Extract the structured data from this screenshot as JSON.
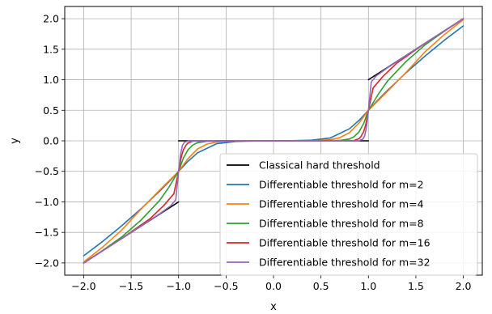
{
  "chart_data": {
    "type": "line",
    "xlabel": "x",
    "ylabel": "y",
    "xlim": [
      -2.2,
      2.2
    ],
    "ylim": [
      -2.2,
      2.2
    ],
    "xticks": [
      -2.0,
      -1.5,
      -1.0,
      -0.5,
      0.0,
      0.5,
      1.0,
      1.5,
      2.0
    ],
    "yticks": [
      -2.0,
      -1.5,
      -1.0,
      -0.5,
      0.0,
      0.5,
      1.0,
      1.5,
      2.0
    ],
    "xtick_labels": [
      "−2.0",
      "−1.5",
      "−1.0",
      "−0.5",
      "0.0",
      "0.5",
      "1.0",
      "1.5",
      "2.0"
    ],
    "ytick_labels": [
      "−2.0",
      "−1.5",
      "−1.0",
      "−0.5",
      "0.0",
      "0.5",
      "1.0",
      "1.5",
      "2.0"
    ],
    "grid": true,
    "legend_position": "lower-right",
    "series": [
      {
        "name": "Classical hard threshold",
        "color": "#000000",
        "segments": [
          {
            "x": [
              -2.0,
              -1.0
            ],
            "y": [
              -2.0,
              -1.0
            ]
          },
          {
            "x": [
              -1.0,
              1.0
            ],
            "y": [
              0.0,
              0.0
            ]
          },
          {
            "x": [
              1.0,
              2.0
            ],
            "y": [
              1.0,
              2.0
            ]
          }
        ]
      },
      {
        "name": "Differentiable threshold for m=2",
        "color": "#1f77b4",
        "m": 2,
        "x": [
          -2.0,
          -1.8,
          -1.6,
          -1.4,
          -1.2,
          -1.1,
          -1.0,
          -0.9,
          -0.8,
          -0.6,
          -0.4,
          -0.2,
          0.0,
          0.2,
          0.4,
          0.6,
          0.8,
          0.9,
          1.0,
          1.1,
          1.2,
          1.4,
          1.6,
          1.8,
          2.0
        ],
        "y": [
          -1.882,
          -1.647,
          -1.392,
          -1.118,
          -0.824,
          -0.668,
          -0.5,
          -0.332,
          -0.196,
          -0.048,
          -0.011,
          -0.002,
          0.0,
          0.002,
          0.011,
          0.048,
          0.196,
          0.332,
          0.5,
          0.668,
          0.824,
          1.118,
          1.392,
          1.647,
          1.882
        ]
      },
      {
        "name": "Differentiable threshold for m=4",
        "color": "#ff7f0e",
        "m": 4,
        "x": [
          -2.0,
          -1.8,
          -1.6,
          -1.4,
          -1.2,
          -1.1,
          -1.0,
          -0.9,
          -0.8,
          -0.7,
          -0.6,
          -0.4,
          0.0,
          0.4,
          0.6,
          0.7,
          0.8,
          0.9,
          1.0,
          1.1,
          1.2,
          1.4,
          1.6,
          1.8,
          2.0
        ],
        "y": [
          -1.984,
          -1.74,
          -1.462,
          -1.126,
          -0.807,
          -0.654,
          -0.5,
          -0.289,
          -0.132,
          -0.053,
          -0.02,
          -0.001,
          0.0,
          0.001,
          0.02,
          0.053,
          0.132,
          0.289,
          0.5,
          0.654,
          0.807,
          1.126,
          1.462,
          1.74,
          1.984
        ]
      },
      {
        "name": "Differentiable threshold for m=8",
        "color": "#2ca02c",
        "m": 8,
        "x": [
          -2.0,
          -1.8,
          -1.6,
          -1.4,
          -1.2,
          -1.1,
          -1.05,
          -1.0,
          -0.95,
          -0.9,
          -0.85,
          -0.8,
          -0.7,
          0.0,
          0.7,
          0.8,
          0.85,
          0.9,
          0.95,
          1.0,
          1.05,
          1.1,
          1.2,
          1.4,
          1.6,
          1.8,
          2.0
        ],
        "y": [
          -2.0,
          -1.794,
          -1.575,
          -1.304,
          -0.977,
          -0.754,
          -0.623,
          -0.5,
          -0.283,
          -0.143,
          -0.069,
          -0.03,
          -0.006,
          0.0,
          0.006,
          0.03,
          0.069,
          0.143,
          0.283,
          0.5,
          0.623,
          0.754,
          0.977,
          1.304,
          1.575,
          1.794,
          2.0
        ]
      },
      {
        "name": "Differentiable threshold for m=16",
        "color": "#d62728",
        "m": 16,
        "x": [
          -2.0,
          -1.6,
          -1.3,
          -1.15,
          -1.05,
          -1.0,
          -0.97,
          -0.95,
          -0.92,
          -0.9,
          -0.85,
          0.0,
          0.85,
          0.9,
          0.92,
          0.95,
          0.97,
          1.0,
          1.05,
          1.15,
          1.3,
          1.6,
          2.0
        ],
        "y": [
          -2.0,
          -1.6,
          -1.275,
          -1.05,
          -0.865,
          -0.5,
          -0.255,
          -0.148,
          -0.067,
          -0.034,
          -0.006,
          0.0,
          0.006,
          0.034,
          0.067,
          0.148,
          0.255,
          0.5,
          0.865,
          1.05,
          1.275,
          1.6,
          2.0
        ]
      },
      {
        "name": "Differentiable threshold for m=32",
        "color": "#9467bd",
        "m": 32,
        "x": [
          -2.0,
          -1.6,
          -1.2,
          -1.08,
          -1.03,
          -1.0,
          -0.98,
          -0.96,
          -0.94,
          -0.9,
          0.0,
          0.9,
          0.94,
          0.96,
          0.98,
          1.0,
          1.03,
          1.08,
          1.2,
          1.6,
          2.0
        ],
        "y": [
          -2.0,
          -1.6,
          -1.196,
          -1.06,
          -0.965,
          -0.5,
          -0.222,
          -0.078,
          -0.025,
          -0.002,
          0.0,
          0.002,
          0.025,
          0.078,
          0.222,
          0.5,
          0.965,
          1.06,
          1.196,
          1.6,
          2.0
        ]
      }
    ]
  }
}
